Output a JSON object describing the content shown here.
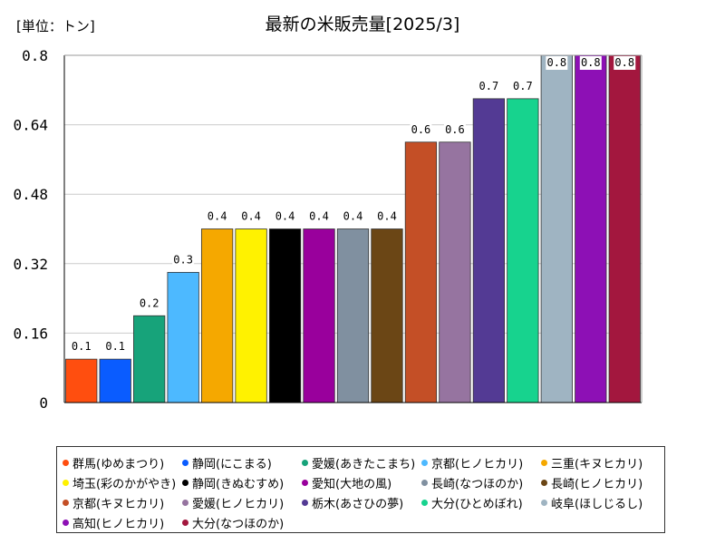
{
  "chart_data": {
    "type": "bar",
    "title": "最新の米販売量[2025/3]",
    "unit": "[単位：トン]",
    "ylim": [
      0,
      0.8
    ],
    "yticks": [
      "0",
      "0.16",
      "0.32",
      "0.48",
      "0.64",
      "0.8"
    ],
    "categories": [
      "群馬(ゆめまつり)",
      "静岡(にこまる)",
      "愛媛(あきたこまち)",
      "京都(ヒノヒカリ)",
      "三重(キヌヒカリ)",
      "埼玉(彩のかがやき)",
      "静岡(きぬむすめ)",
      "愛知(大地の風)",
      "長崎(なつほのか)",
      "長崎(ヒノヒカリ)",
      "京都(キヌヒカリ)",
      "愛媛(ヒノヒカリ)",
      "栃木(あさひの夢)",
      "大分(ひとめぼれ)",
      "岐阜(ほしじるし)",
      "高知(ヒノヒカリ)",
      "大分(なつほのか)"
    ],
    "values": [
      0.1,
      0.1,
      0.2,
      0.3,
      0.4,
      0.4,
      0.4,
      0.4,
      0.4,
      0.4,
      0.6,
      0.6,
      0.7,
      0.7,
      0.8,
      0.8,
      0.8
    ],
    "value_labels": [
      "0.1",
      "0.1",
      "0.2",
      "0.3",
      "0.4",
      "0.4",
      "0.4",
      "0.4",
      "0.4",
      "0.4",
      "0.6",
      "0.6",
      "0.7",
      "0.7",
      "0.8",
      "0.8",
      "0.8"
    ],
    "colors": [
      "#ff4e0f",
      "#0a5cff",
      "#17a37a",
      "#4db9ff",
      "#f5a800",
      "#fff200",
      "#000000",
      "#99009c",
      "#8090a0",
      "#6b4615",
      "#c44f26",
      "#9674a0",
      "#533a94",
      "#17d38e",
      "#9fb4c2",
      "#8d10b5",
      "#a3173e"
    ]
  }
}
